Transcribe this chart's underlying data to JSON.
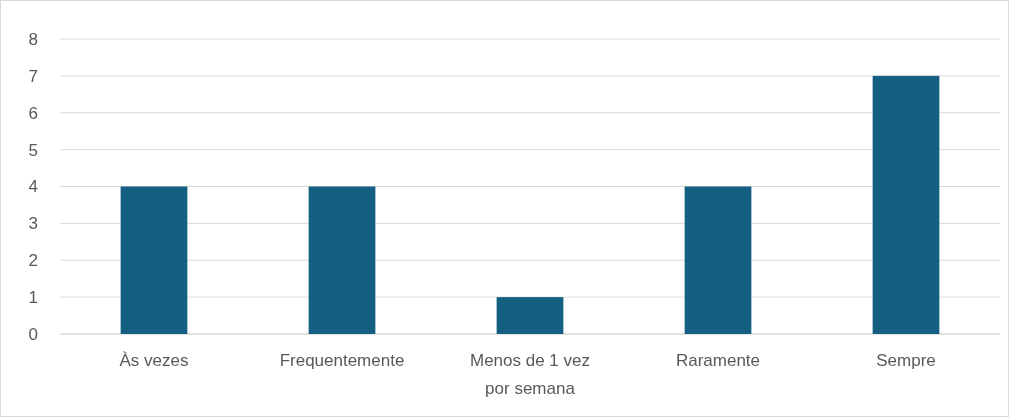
{
  "chart_data": {
    "type": "bar",
    "categories": [
      "Às vezes",
      "Frequentemente",
      "Menos de 1 vez por semana",
      "Raramente",
      "Sempre"
    ],
    "values": [
      4,
      4,
      1,
      4,
      7
    ],
    "color": "#156082",
    "ylim": [
      0,
      8
    ],
    "yticks": [
      0,
      1,
      2,
      3,
      4,
      5,
      6,
      7,
      8
    ],
    "grid": "y"
  }
}
